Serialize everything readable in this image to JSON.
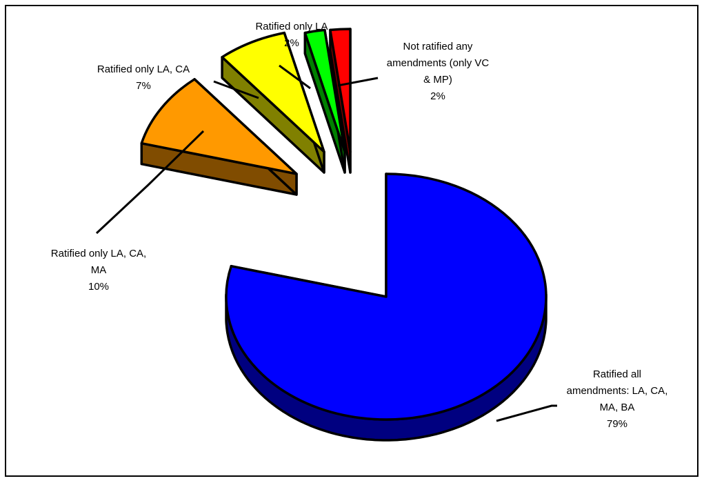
{
  "chart_data": {
    "type": "pie",
    "three_d": true,
    "exploded": true,
    "legend": "none",
    "slices": [
      {
        "label_lines": [
          "Ratified all",
          "amendments: LA, CA,",
          "MA, BA"
        ],
        "percent_text": "79%",
        "value": 79,
        "color": "#0000FF",
        "side_color": "#000080"
      },
      {
        "label_lines": [
          "Ratified only LA, CA,",
          "MA"
        ],
        "percent_text": "10%",
        "value": 10,
        "color": "#FF9900",
        "side_color": "#804C00"
      },
      {
        "label_lines": [
          "Ratified only LA, CA"
        ],
        "percent_text": "7%",
        "value": 7,
        "color": "#FFFF00",
        "side_color": "#808000"
      },
      {
        "label_lines": [
          "Ratified only LA"
        ],
        "percent_text": "2%",
        "value": 2,
        "color": "#00FF00",
        "side_color": "#008000"
      },
      {
        "label_lines": [
          "Not ratified any",
          "amendments (only VC",
          "& MP)"
        ],
        "percent_text": "2%",
        "value": 2,
        "color": "#FF0000",
        "side_color": "#800000"
      }
    ]
  }
}
